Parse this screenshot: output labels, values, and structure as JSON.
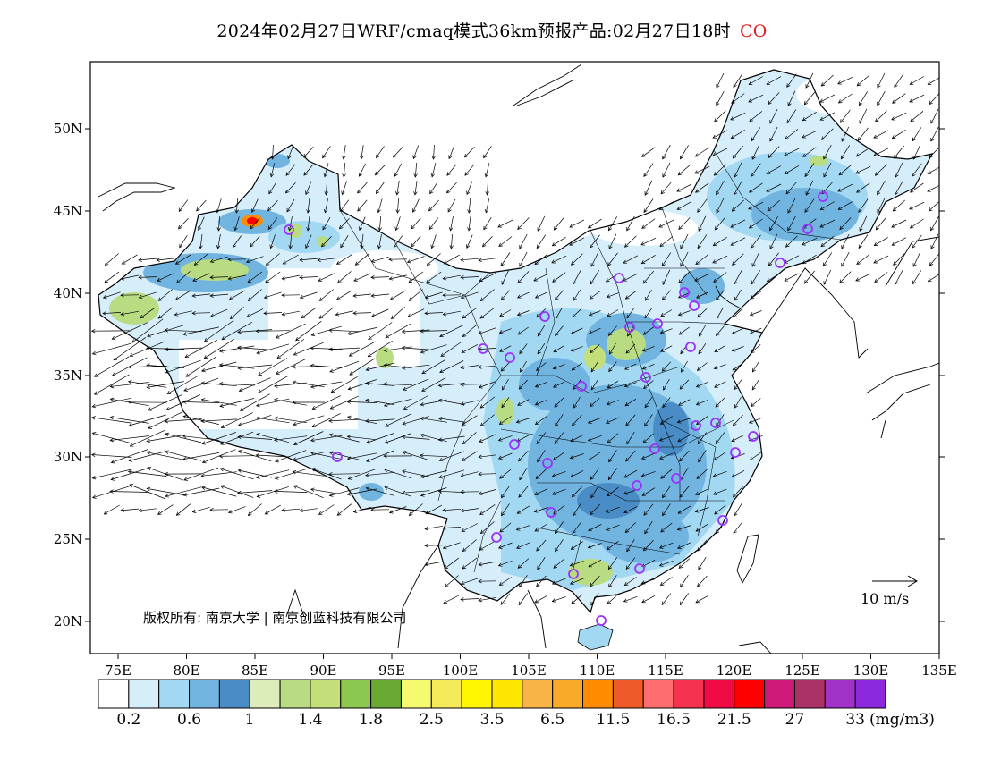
{
  "title": {
    "text": "2024年02月27日WRF/cmaq模式36km预报产品:02月27日18时",
    "species": "CO"
  },
  "axes": {
    "lat_labels": [
      "50N",
      "45N",
      "40N",
      "35N",
      "30N",
      "25N",
      "20N"
    ],
    "lon_labels": [
      "75E",
      "80E",
      "85E",
      "90E",
      "95E",
      "100E",
      "105E",
      "110E",
      "115E",
      "120E",
      "125E",
      "130E",
      "135E"
    ]
  },
  "copyright": "版权所有: 南京大学 | 南京创蓝科技有限公司",
  "vector_reference": {
    "label": "10 m/s"
  },
  "legend": {
    "colors": [
      "#ffffff",
      "#d6eefa",
      "#a3d8f3",
      "#72b4e0",
      "#4a8dc6",
      "#dcedb9",
      "#b9dc82",
      "#c3df79",
      "#8cc850",
      "#6aa934",
      "#f5fa6e",
      "#f5eb5a",
      "#fff500",
      "#ffe600",
      "#f8b446",
      "#f8aa28",
      "#ff8c00",
      "#f05a28",
      "#ff6e6e",
      "#f53250",
      "#f00a46",
      "#ff0000",
      "#cd1978",
      "#aa3264",
      "#a032c8",
      "#8c28dc"
    ],
    "labels": [
      "0.2",
      "0.6",
      "1",
      "1.4",
      "1.8",
      "2.5",
      "3.5",
      "6.5",
      "11.5",
      "16.5",
      "21.5",
      "27",
      "33"
    ],
    "unit": "(mg/m3)"
  },
  "city_marker_color": "#9b30ff",
  "vector_color": "#000000",
  "boundary_color": "#000000"
}
